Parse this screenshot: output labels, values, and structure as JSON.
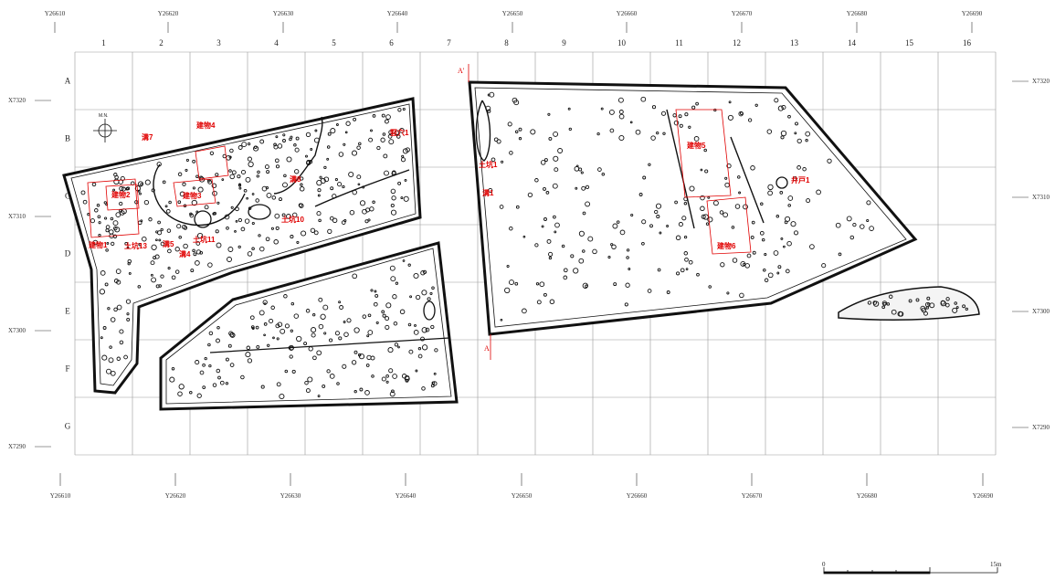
{
  "grid": {
    "columns": [
      "1",
      "2",
      "3",
      "4",
      "5",
      "6",
      "7",
      "8",
      "9",
      "10",
      "11",
      "12",
      "13",
      "14",
      "15",
      "16"
    ],
    "rows": [
      "A",
      "B",
      "C",
      "D",
      "E",
      "F",
      "G"
    ]
  },
  "y_coords": [
    "Y26610",
    "Y26620",
    "Y26630",
    "Y26640",
    "Y26650",
    "Y26660",
    "Y26670",
    "Y26680",
    "Y26690"
  ],
  "x_coords": [
    "X7320",
    "X7310",
    "X7300",
    "X7290"
  ],
  "north": "M.N.",
  "section": {
    "a": "A",
    "a_prime": "A'"
  },
  "features": [
    {
      "label": "溝7"
    },
    {
      "label": "建物4"
    },
    {
      "label": "竪穴1"
    },
    {
      "label": "建物2"
    },
    {
      "label": "建物3"
    },
    {
      "label": "溝8"
    },
    {
      "label": "土坑10"
    },
    {
      "label": "建物1"
    },
    {
      "label": "土坑13"
    },
    {
      "label": "溝5"
    },
    {
      "label": "溝4"
    },
    {
      "label": "土坑11"
    },
    {
      "label": "土坑1"
    },
    {
      "label": "溝1"
    },
    {
      "label": "建物5"
    },
    {
      "label": "井戸1"
    },
    {
      "label": "建物6"
    }
  ],
  "scale": {
    "start": "0",
    "end": "15m"
  }
}
